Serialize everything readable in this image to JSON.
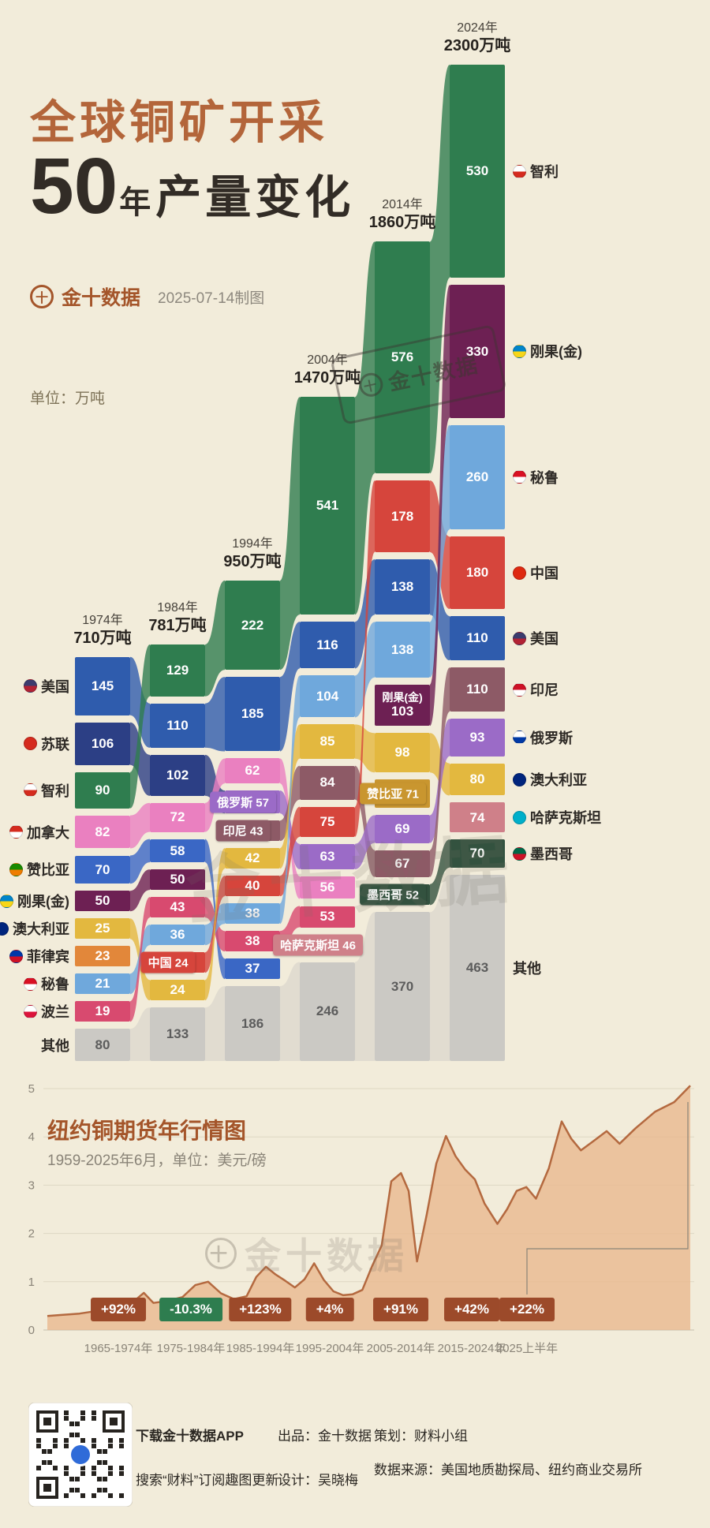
{
  "header": {
    "title_line1": "全球铜矿开采",
    "title_num": "50",
    "title_year_char": "年",
    "title_rest": "产量变化",
    "brand": "金十数据",
    "date_note": "2025-07-14制图",
    "unit_label": "单位：万吨",
    "logo_glyph": "十"
  },
  "watermarks": {
    "text": "金十数据"
  },
  "chart_data": [
    {
      "type": "area",
      "subtype": "alluvial-bump",
      "title": "全球铜矿开采50年产量变化",
      "unit": "万吨",
      "other_name": "其他",
      "alias": {
        "苏联": "俄罗斯"
      },
      "columns": [
        {
          "year": "1974年",
          "total": "710万吨",
          "blocks": [
            {
              "country": "美国",
              "value": 145,
              "color": "#2f5cad"
            },
            {
              "country": "苏联",
              "value": 106,
              "color": "#2c3f85"
            },
            {
              "country": "智利",
              "value": 90,
              "color": "#2f7d4f"
            },
            {
              "country": "加拿大",
              "value": 82,
              "color": "#ea80c0"
            },
            {
              "country": "赞比亚",
              "value": 70,
              "color": "#3a67c5"
            },
            {
              "country": "刚果(金)",
              "value": 50,
              "color": "#6d2053"
            },
            {
              "country": "澳大利亚",
              "value": 25,
              "color": "#e3b83f"
            },
            {
              "country": "菲律宾",
              "value": 23,
              "color": "#e2873a"
            },
            {
              "country": "秘鲁",
              "value": 21,
              "color": "#6fa8dc"
            },
            {
              "country": "波兰",
              "value": 19,
              "color": "#d84a6f"
            },
            {
              "country": "其他",
              "value": 80,
              "color": "#cbc9c4",
              "tc": "#5c5c5c"
            }
          ]
        },
        {
          "year": "1984年",
          "total": "781万吨",
          "blocks": [
            {
              "country": "智利",
              "value": 129,
              "color": "#2f7d4f"
            },
            {
              "country": "美国",
              "value": 110,
              "color": "#2f5cad"
            },
            {
              "country": "苏联",
              "value": 102,
              "color": "#2c3f85"
            },
            {
              "country": "加拿大",
              "value": 72,
              "color": "#ea80c0"
            },
            {
              "country": "赞比亚",
              "value": 58,
              "color": "#3a67c5"
            },
            {
              "country": "刚果(金)",
              "value": 50,
              "color": "#6d2053"
            },
            {
              "country": "波兰",
              "value": 43,
              "color": "#d84a6f"
            },
            {
              "country": "秘鲁",
              "value": 36,
              "color": "#6fa8dc"
            },
            {
              "country": "中国",
              "value": 24,
              "color": "#d6453c",
              "badge": true
            },
            {
              "country": "澳大利亚",
              "value": 24,
              "color": "#e3b83f"
            },
            {
              "country": "其他",
              "value": 133,
              "color": "#cbc9c4",
              "tc": "#5c5c5c"
            }
          ]
        },
        {
          "year": "1994年",
          "total": "950万吨",
          "blocks": [
            {
              "country": "智利",
              "value": 222,
              "color": "#2f7d4f"
            },
            {
              "country": "美国",
              "value": 185,
              "color": "#2f5cad"
            },
            {
              "country": "加拿大",
              "value": 62,
              "color": "#ea80c0"
            },
            {
              "country": "俄罗斯",
              "value": 57,
              "color": "#9b6bc7",
              "badge": true
            },
            {
              "country": "印尼",
              "value": 43,
              "color": "#8d5a66",
              "badge": true
            },
            {
              "country": "澳大利亚",
              "value": 42,
              "color": "#e3b83f"
            },
            {
              "country": "中国",
              "value": 40,
              "color": "#d6453c"
            },
            {
              "country": "秘鲁",
              "value": 38,
              "color": "#6fa8dc"
            },
            {
              "country": "波兰",
              "value": 38,
              "color": "#d84a6f"
            },
            {
              "country": "赞比亚",
              "value": 37,
              "color": "#3a67c5"
            },
            {
              "country": "其他",
              "value": 186,
              "color": "#cbc9c4",
              "tc": "#5c5c5c"
            }
          ]
        },
        {
          "year": "2004年",
          "total": "1470万吨",
          "blocks": [
            {
              "country": "智利",
              "value": 541,
              "color": "#2f7d4f"
            },
            {
              "country": "美国",
              "value": 116,
              "color": "#2f5cad"
            },
            {
              "country": "秘鲁",
              "value": 104,
              "color": "#6fa8dc"
            },
            {
              "country": "澳大利亚",
              "value": 85,
              "color": "#e3b83f"
            },
            {
              "country": "印尼",
              "value": 84,
              "color": "#8d5a66"
            },
            {
              "country": "中国",
              "value": 75,
              "color": "#d6453c"
            },
            {
              "country": "俄罗斯",
              "value": 63,
              "color": "#9b6bc7"
            },
            {
              "country": "加拿大",
              "value": 56,
              "color": "#ea80c0"
            },
            {
              "country": "波兰",
              "value": 53,
              "color": "#d84a6f"
            },
            {
              "country": "哈萨克斯坦",
              "value": 46,
              "color": "#cf8089",
              "badge": true
            },
            {
              "country": "其他",
              "value": 246,
              "color": "#cbc9c4",
              "tc": "#5c5c5c"
            }
          ]
        },
        {
          "year": "2014年",
          "total": "1860万吨",
          "blocks": [
            {
              "country": "智利",
              "value": 576,
              "color": "#2f7d4f"
            },
            {
              "country": "中国",
              "value": 178,
              "color": "#d6453c"
            },
            {
              "country": "美国",
              "value": 138,
              "color": "#2f5cad"
            },
            {
              "country": "秘鲁",
              "value": 138,
              "color": "#6fa8dc"
            },
            {
              "country": "刚果(金)",
              "value": 103,
              "color": "#6d2053",
              "stacked": true
            },
            {
              "country": "澳大利亚",
              "value": 98,
              "color": "#e3b83f"
            },
            {
              "country": "赞比亚",
              "value": 71,
              "color": "#c9962f",
              "badge": true
            },
            {
              "country": "俄罗斯",
              "value": 69,
              "color": "#9b6bc7"
            },
            {
              "country": "印尼",
              "value": 67,
              "color": "#8d5a66"
            },
            {
              "country": "墨西哥",
              "value": 52,
              "color": "#33523f",
              "badge": true
            },
            {
              "country": "其他",
              "value": 370,
              "color": "#cbc9c4",
              "tc": "#5c5c5c"
            }
          ]
        },
        {
          "year": "2024年",
          "total": "2300万吨",
          "blocks": [
            {
              "country": "智利",
              "value": 530,
              "color": "#2f7d4f"
            },
            {
              "country": "刚果(金)",
              "value": 330,
              "color": "#6d2053"
            },
            {
              "country": "秘鲁",
              "value": 260,
              "color": "#6fa8dc"
            },
            {
              "country": "中国",
              "value": 180,
              "color": "#d6453c"
            },
            {
              "country": "美国",
              "value": 110,
              "color": "#2f5cad"
            },
            {
              "country": "印尼",
              "value": 110,
              "color": "#8d5a66"
            },
            {
              "country": "俄罗斯",
              "value": 93,
              "color": "#9b6bc7"
            },
            {
              "country": "澳大利亚",
              "value": 80,
              "color": "#e3b83f"
            },
            {
              "country": "哈萨克斯坦",
              "value": 74,
              "color": "#cf8089"
            },
            {
              "country": "墨西哥",
              "value": 70,
              "color": "#33523f"
            },
            {
              "country": "其他",
              "value": 463,
              "color": "#cbc9c4",
              "tc": "#5c5c5c"
            }
          ]
        }
      ],
      "left_labels": [
        {
          "name": "美国",
          "flag": [
            "#3c3b6e",
            "#b22234"
          ]
        },
        {
          "name": "苏联",
          "flag": [
            "#d52b1e",
            "#d52b1e"
          ]
        },
        {
          "name": "智利",
          "flag": [
            "#ffffff",
            "#d52b1e"
          ]
        },
        {
          "name": "加拿大",
          "flag": [
            "#d52b1e",
            "#ffffff"
          ]
        },
        {
          "name": "赞比亚",
          "flag": [
            "#198a00",
            "#ef7d00"
          ]
        },
        {
          "name": "刚果(金)",
          "flag": [
            "#0085ca",
            "#f7d618"
          ]
        },
        {
          "name": "澳大利亚",
          "flag": [
            "#00247d",
            "#00247d"
          ]
        },
        {
          "name": "菲律宾",
          "flag": [
            "#0038a8",
            "#ce1126"
          ]
        },
        {
          "name": "秘鲁",
          "flag": [
            "#d91023",
            "#ffffff"
          ]
        },
        {
          "name": "波兰",
          "flag": [
            "#ffffff",
            "#dc143c"
          ]
        },
        {
          "name": "其他",
          "flag": null
        }
      ],
      "right_labels": [
        {
          "name": "智利",
          "flag": [
            "#ffffff",
            "#d52b1e"
          ]
        },
        {
          "name": "刚果(金)",
          "flag": [
            "#0085ca",
            "#f7d618"
          ]
        },
        {
          "name": "秘鲁",
          "flag": [
            "#d91023",
            "#ffffff"
          ]
        },
        {
          "name": "中国",
          "flag": [
            "#de2910",
            "#de2910"
          ]
        },
        {
          "name": "美国",
          "flag": [
            "#3c3b6e",
            "#b22234"
          ]
        },
        {
          "name": "印尼",
          "flag": [
            "#ce1126",
            "#ffffff"
          ]
        },
        {
          "name": "俄罗斯",
          "flag": [
            "#ffffff",
            "#0039a6"
          ]
        },
        {
          "name": "澳大利亚",
          "flag": [
            "#00247d",
            "#00247d"
          ]
        },
        {
          "name": "哈萨克斯坦",
          "flag": [
            "#00afca",
            "#00afca"
          ]
        },
        {
          "name": "墨西哥",
          "flag": [
            "#006847",
            "#ce1126"
          ]
        },
        {
          "name": "其他",
          "flag": null
        }
      ]
    },
    {
      "type": "line",
      "title": "纽约铜期货年行情图",
      "subtitle": "1959-2025年6月，单位：美元/磅",
      "ylim": [
        0,
        5
      ],
      "y_ticks": [
        0,
        1,
        2,
        3,
        4,
        5
      ],
      "unit": "美元/磅",
      "area_color": "#e9b98f",
      "line_color": "#b4693f",
      "points": [
        [
          0.0,
          0.29
        ],
        [
          0.02,
          0.31
        ],
        [
          0.05,
          0.34
        ],
        [
          0.07,
          0.38
        ],
        [
          0.09,
          0.46
        ],
        [
          0.105,
          0.52
        ],
        [
          0.12,
          0.46
        ],
        [
          0.135,
          0.6
        ],
        [
          0.15,
          0.77
        ],
        [
          0.165,
          0.56
        ],
        [
          0.185,
          0.6
        ],
        [
          0.21,
          0.68
        ],
        [
          0.23,
          0.93
        ],
        [
          0.25,
          1.0
        ],
        [
          0.27,
          0.76
        ],
        [
          0.29,
          0.64
        ],
        [
          0.31,
          0.7
        ],
        [
          0.325,
          1.1
        ],
        [
          0.34,
          1.31
        ],
        [
          0.355,
          1.15
        ],
        [
          0.37,
          1.02
        ],
        [
          0.385,
          0.88
        ],
        [
          0.4,
          1.05
        ],
        [
          0.415,
          1.38
        ],
        [
          0.43,
          1.04
        ],
        [
          0.445,
          0.8
        ],
        [
          0.46,
          0.72
        ],
        [
          0.475,
          0.74
        ],
        [
          0.49,
          0.83
        ],
        [
          0.505,
          1.32
        ],
        [
          0.52,
          1.75
        ],
        [
          0.535,
          3.08
        ],
        [
          0.55,
          3.25
        ],
        [
          0.562,
          2.88
        ],
        [
          0.575,
          1.42
        ],
        [
          0.59,
          2.38
        ],
        [
          0.605,
          3.45
        ],
        [
          0.62,
          4.02
        ],
        [
          0.635,
          3.6
        ],
        [
          0.65,
          3.32
        ],
        [
          0.665,
          3.12
        ],
        [
          0.68,
          2.62
        ],
        [
          0.7,
          2.2
        ],
        [
          0.715,
          2.5
        ],
        [
          0.73,
          2.88
        ],
        [
          0.745,
          2.96
        ],
        [
          0.76,
          2.72
        ],
        [
          0.78,
          3.35
        ],
        [
          0.8,
          4.32
        ],
        [
          0.815,
          3.96
        ],
        [
          0.83,
          3.72
        ],
        [
          0.85,
          3.92
        ],
        [
          0.87,
          4.12
        ],
        [
          0.89,
          3.86
        ],
        [
          0.915,
          4.18
        ],
        [
          0.945,
          4.52
        ],
        [
          0.975,
          4.72
        ],
        [
          1.0,
          5.06
        ]
      ],
      "periods": [
        {
          "label": "+92%",
          "range": "1965-1974年",
          "color": "#9c4a2a"
        },
        {
          "label": "-10.3%",
          "range": "1975-1984年",
          "color": "#2e7d4f"
        },
        {
          "label": "+123%",
          "range": "1985-1994年",
          "color": "#9c4a2a"
        },
        {
          "label": "+4%",
          "range": "1995-2004年",
          "color": "#9c4a2a"
        },
        {
          "label": "+91%",
          "range": "2005-2014年",
          "color": "#9c4a2a"
        },
        {
          "label": "+42%",
          "range": "2015-2024年",
          "color": "#9c4a2a"
        },
        {
          "label": "+22%",
          "range": "2025上半年",
          "color": "#9c4a2a"
        }
      ]
    }
  ],
  "footer": {
    "line_download": "下载金十数据APP",
    "line_search": "搜索“财料”订阅趣图更新",
    "producer": "出品：金十数据",
    "designer": "设计：吴晓梅",
    "planner": "策划：财料小组",
    "source": "数据来源：美国地质勘探局、纽约商业交易所"
  }
}
